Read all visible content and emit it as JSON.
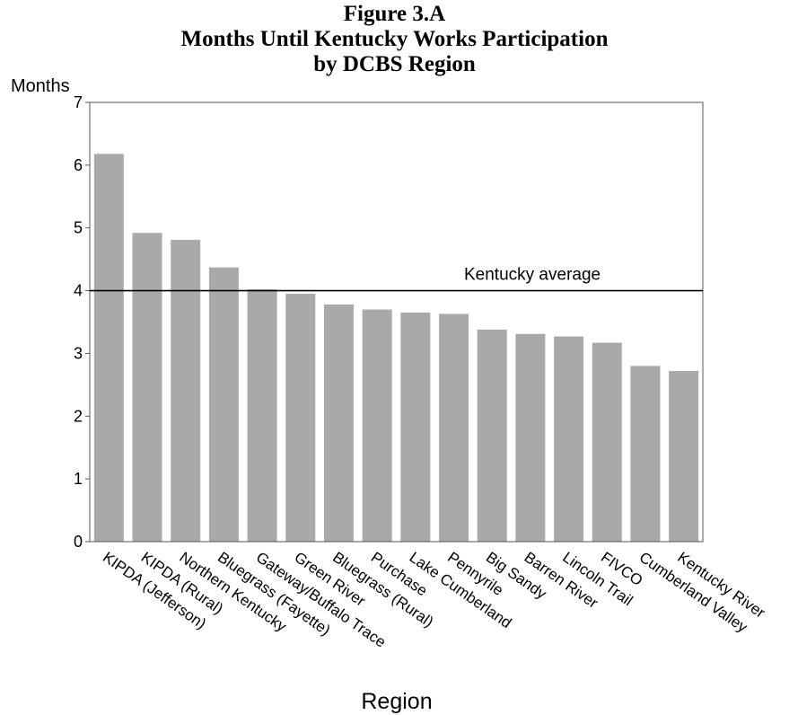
{
  "figure": {
    "title_line1": "Figure 3.A",
    "title_line2": "Months Until Kentucky Works Participation",
    "title_line3": "by DCBS Region"
  },
  "chart_data": {
    "type": "bar",
    "categories": [
      "KIPDA (Jefferson)",
      "KIPDA (Rural)",
      "Northern Kentucky",
      "Bluegrass (Fayette)",
      "Gateway/Buffalo Trace",
      "Green River",
      "Bluegrass (Rural)",
      "Purchase",
      "Lake Cumberland",
      "Pennyrile",
      "Big Sandy",
      "Barren River",
      "Lincoln Trail",
      "FIVCO",
      "Cumberland Valley",
      "Kentucky River"
    ],
    "values": [
      6.18,
      4.92,
      4.81,
      4.37,
      4.02,
      3.95,
      3.78,
      3.7,
      3.65,
      3.63,
      3.38,
      3.31,
      3.27,
      3.17,
      2.8,
      2.72
    ],
    "title": "Months Until Kentucky Works Participation by DCBS Region",
    "xlabel": "Region",
    "ylabel": "Months",
    "ylim": [
      0,
      7
    ],
    "yticks": [
      0,
      1,
      2,
      3,
      4,
      5,
      6,
      7
    ],
    "reference_line": {
      "label": "Kentucky average",
      "value": 4.0
    },
    "bar_color": "#a9a9a9",
    "grid": false
  }
}
